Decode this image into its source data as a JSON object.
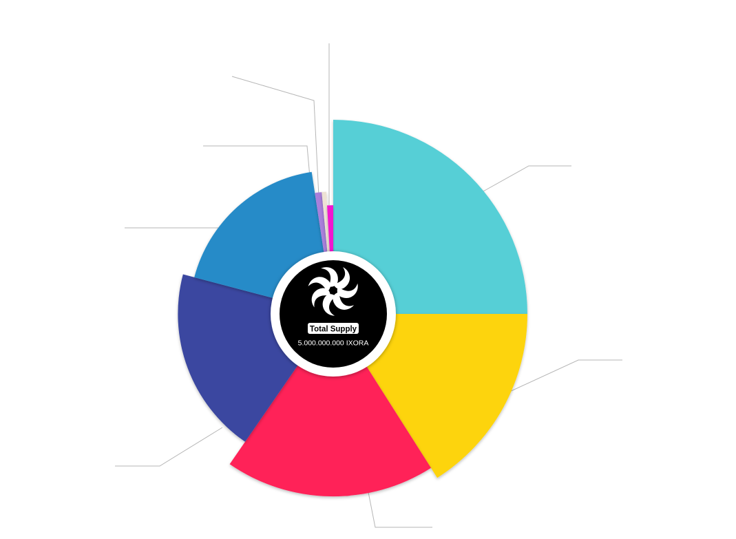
{
  "chart_data": {
    "type": "pie",
    "center_label": {
      "badge": "Total Supply",
      "value": "5.000.000.000 IXORA"
    },
    "slices": [
      {
        "value": 25.0,
        "color": "#56CFD6"
      },
      {
        "value": 16.0,
        "color": "#FDD40F"
      },
      {
        "value": 18.6,
        "color": "#FF2159"
      },
      {
        "value": 19.5,
        "color": "#3A46A0"
      },
      {
        "value": 18.5,
        "color": "#268BC8"
      },
      {
        "value": 0.9,
        "color": "#A97FDB"
      },
      {
        "value": 0.6,
        "color": "#EDE2D4"
      },
      {
        "value": 0.9,
        "color": "#F215CF"
      }
    ],
    "outer_extent": [
      1.0,
      1.0,
      0.94,
      0.8,
      0.74,
      0.63,
      0.63,
      0.56
    ],
    "legend": "none"
  }
}
